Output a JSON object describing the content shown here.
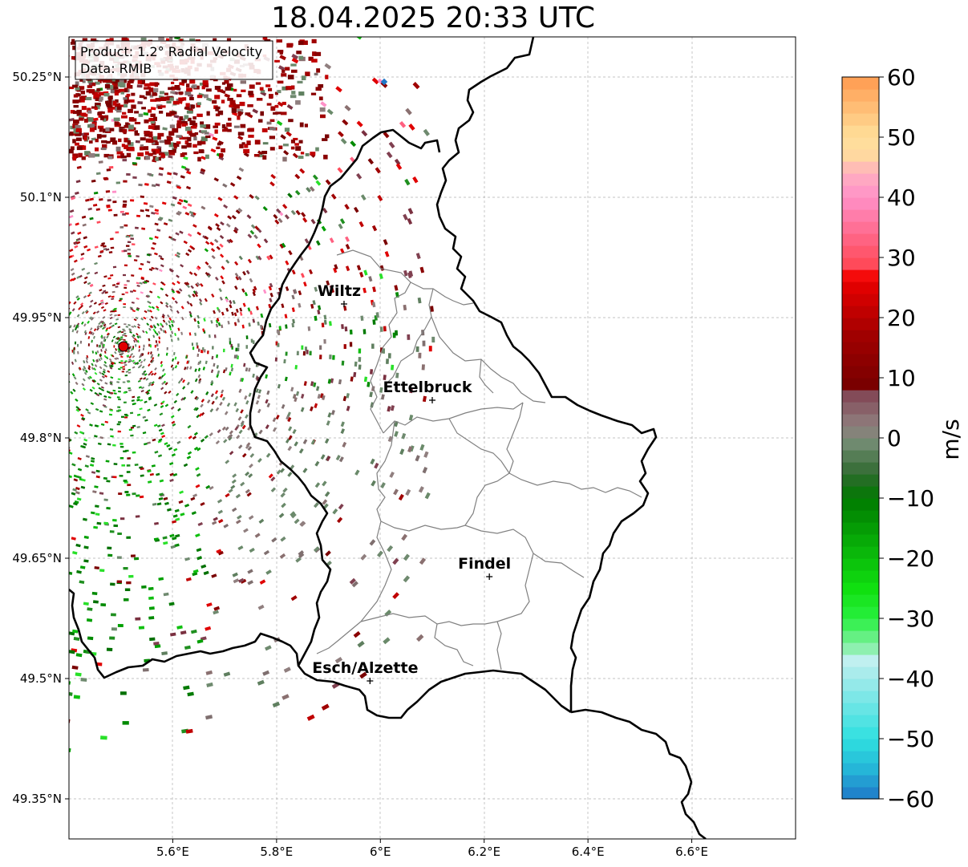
{
  "title": "18.04.2025 20:33 UTC",
  "info_box": {
    "line1": "Product: 1.2° Radial Velocity",
    "line2": "Data: RMIB"
  },
  "axes": {
    "lon_ticks": [
      {
        "value": 5.6,
        "label": "5.6°E"
      },
      {
        "value": 5.8,
        "label": "5.8°E"
      },
      {
        "value": 6.0,
        "label": "6°E"
      },
      {
        "value": 6.2,
        "label": "6.2°E"
      },
      {
        "value": 6.4,
        "label": "6.4°E"
      },
      {
        "value": 6.6,
        "label": "6.6°E"
      }
    ],
    "lat_ticks": [
      {
        "value": 50.25,
        "label": "50.25°N"
      },
      {
        "value": 50.1,
        "label": "50.1°N"
      },
      {
        "value": 49.95,
        "label": "49.95°N"
      },
      {
        "value": 49.8,
        "label": "49.8°N"
      },
      {
        "value": 49.65,
        "label": "49.65°N"
      },
      {
        "value": 49.5,
        "label": "49.5°N"
      },
      {
        "value": 49.35,
        "label": "49.35°N"
      }
    ],
    "lon_range": [
      5.4,
      6.8
    ],
    "lat_range": [
      49.3,
      50.3
    ],
    "grid": true
  },
  "cities": [
    {
      "name": "Wiltz",
      "lon": 5.93,
      "lat": 49.967
    },
    {
      "name": "Ettelbruck",
      "lon": 6.1,
      "lat": 49.847
    },
    {
      "name": "Findel",
      "lon": 6.21,
      "lat": 49.627
    },
    {
      "name": "Esch/Alzette",
      "lon": 5.98,
      "lat": 49.497
    }
  ],
  "radar_site": {
    "lon": 5.505,
    "lat": 49.914,
    "color": "#e00000"
  },
  "colorbar": {
    "label": "m/s",
    "min": -60,
    "max": 60,
    "tick_values": [
      60,
      50,
      40,
      30,
      20,
      10,
      0,
      -10,
      -20,
      -30,
      -40,
      -50,
      -60
    ],
    "tick_labels": [
      "60",
      "50",
      "40",
      "30",
      "20",
      "10",
      "0",
      "−10",
      "−20",
      "−30",
      "−40",
      "−50",
      "−60"
    ]
  }
}
